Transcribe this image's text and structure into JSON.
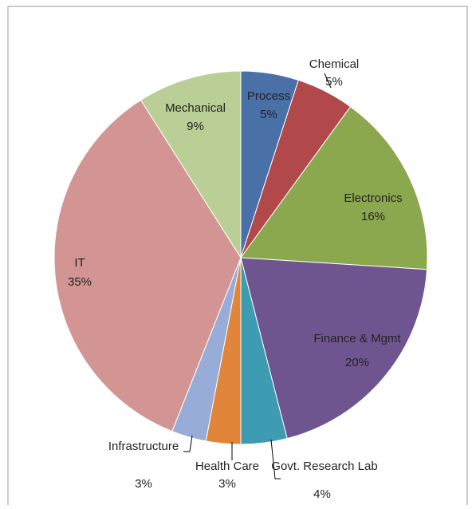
{
  "chart_data": {
    "type": "pie",
    "categories": [
      "Process",
      "Chemical",
      "Electronics",
      "Finance & Mgmt",
      "Govt. Research Lab",
      "Health Care",
      "Infrastructure",
      "IT",
      "Mechanical"
    ],
    "values": [
      5,
      5,
      16,
      20,
      4,
      3,
      3,
      35,
      9
    ],
    "value_labels": [
      "5%",
      "5%",
      "16%",
      "20%",
      "4%",
      "3%",
      "3%",
      "35%",
      "9%"
    ],
    "colors": [
      "#4a70a8",
      "#b1494a",
      "#8ba84f",
      "#6f5590",
      "#3e9cb2",
      "#e0853a",
      "#97acd6",
      "#d29593",
      "#bacf95"
    ]
  }
}
